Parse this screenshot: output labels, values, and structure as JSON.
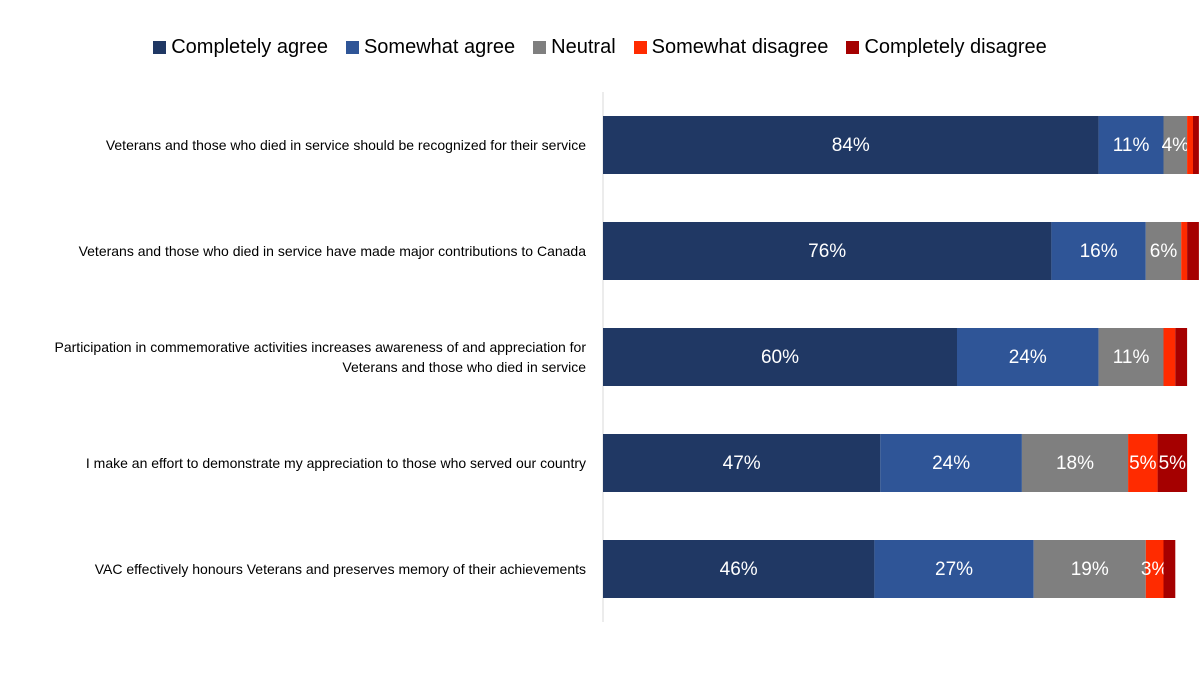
{
  "chart_data": {
    "type": "stacked-bar-horizontal",
    "categories": [
      "Veterans and those who died in service should be recognized for their service",
      "Veterans and those who died in service have made major contributions to Canada",
      "Participation in commemorative activities increases awareness of and appreciation for Veterans and those who died in service",
      "I make an effort to demonstrate my appreciation to those who served our country",
      "VAC effectively honours Veterans and preserves memory of their achievements"
    ],
    "xlim": [
      0,
      100
    ],
    "legend": "top",
    "series": [
      {
        "name": "Completely agree",
        "color": "#203864",
        "values": [
          84,
          76,
          60,
          47,
          46
        ],
        "value_labels": [
          "84%",
          "76%",
          "60%",
          "47%",
          "46%"
        ]
      },
      {
        "name": "Somewhat agree",
        "color": "#2f5597",
        "values": [
          11,
          16,
          24,
          24,
          27
        ],
        "value_labels": [
          "11%",
          "16%",
          "24%",
          "24%",
          "27%"
        ]
      },
      {
        "name": "Neutral",
        "color": "#7f7f7f",
        "values": [
          4,
          6,
          11,
          18,
          19
        ],
        "value_labels": [
          "4%",
          "6%",
          "11%",
          "18%",
          "19%"
        ]
      },
      {
        "name": "Somewhat disagree",
        "color": "#ff2b00",
        "values": [
          1,
          1,
          2,
          5,
          3
        ],
        "value_labels": [
          null,
          null,
          null,
          "5%",
          "3%"
        ]
      },
      {
        "name": "Completely disagree",
        "color": "#a50000",
        "values": [
          1,
          2,
          2,
          5,
          2
        ],
        "value_labels": [
          null,
          null,
          null,
          "5%",
          null
        ]
      }
    ]
  }
}
